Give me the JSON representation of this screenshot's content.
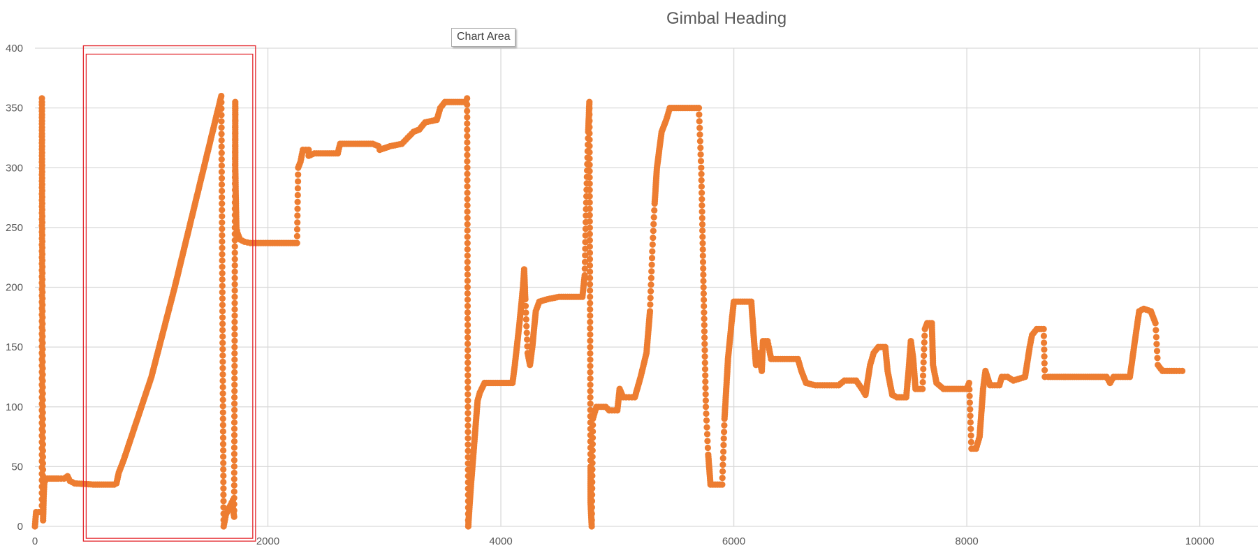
{
  "tooltip": {
    "label": "Chart Area"
  },
  "chart_data": {
    "type": "scatter",
    "title": "Gimbal Heading",
    "xlabel": "",
    "ylabel": "",
    "xlim": [
      0,
      10500
    ],
    "ylim": [
      0,
      400
    ],
    "x_ticks": [
      0,
      2000,
      4000,
      6000,
      8000,
      10000
    ],
    "y_ticks": [
      0,
      50,
      100,
      150,
      200,
      250,
      300,
      350,
      400
    ],
    "grid": true,
    "legend": "none",
    "marker_color": "#ED7D31",
    "grid_color": "#D9D9D9",
    "selection_color": "#E3262B",
    "selection_box": {
      "x_range": [
        440,
        1870
      ],
      "y_range": [
        -10,
        395
      ]
    },
    "series": [
      {
        "values": [
          [
            0,
            0
          ],
          [
            10,
            12
          ],
          [
            60,
            12
          ],
          [
            60,
            358
          ],
          [
            60,
            355
          ],
          [
            70,
            5
          ],
          [
            75,
            25
          ],
          [
            80,
            35
          ],
          [
            90,
            40
          ],
          [
            200,
            40
          ],
          [
            250,
            40
          ],
          [
            280,
            42
          ],
          [
            300,
            38
          ],
          [
            340,
            36
          ],
          [
            500,
            35
          ],
          [
            680,
            35
          ],
          [
            700,
            36
          ],
          [
            720,
            45
          ],
          [
            760,
            55
          ],
          [
            1000,
            125
          ],
          [
            1200,
            200
          ],
          [
            1400,
            280
          ],
          [
            1600,
            360
          ],
          [
            1620,
            0
          ],
          [
            1640,
            10
          ],
          [
            1680,
            18
          ],
          [
            1700,
            22
          ],
          [
            1700,
            15
          ],
          [
            1710,
            8
          ],
          [
            1720,
            355
          ],
          [
            1720,
            330
          ],
          [
            1720,
            300
          ],
          [
            1725,
            270
          ],
          [
            1730,
            250
          ],
          [
            1740,
            245
          ],
          [
            1760,
            240
          ],
          [
            1800,
            238
          ],
          [
            1850,
            237
          ],
          [
            1900,
            237
          ],
          [
            2000,
            237
          ],
          [
            2100,
            237
          ],
          [
            2250,
            237
          ],
          [
            2260,
            300
          ],
          [
            2280,
            305
          ],
          [
            2300,
            315
          ],
          [
            2350,
            315
          ],
          [
            2350,
            310
          ],
          [
            2400,
            312
          ],
          [
            2600,
            312
          ],
          [
            2620,
            320
          ],
          [
            2900,
            320
          ],
          [
            2950,
            318
          ],
          [
            2960,
            315
          ],
          [
            3050,
            318
          ],
          [
            3150,
            320
          ],
          [
            3200,
            325
          ],
          [
            3250,
            330
          ],
          [
            3300,
            332
          ],
          [
            3350,
            338
          ],
          [
            3450,
            340
          ],
          [
            3480,
            350
          ],
          [
            3520,
            355
          ],
          [
            3700,
            355
          ],
          [
            3710,
            358
          ],
          [
            3720,
            0
          ],
          [
            3740,
            30
          ],
          [
            3780,
            80
          ],
          [
            3800,
            105
          ],
          [
            3820,
            112
          ],
          [
            3860,
            120
          ],
          [
            4100,
            120
          ],
          [
            4120,
            135
          ],
          [
            4160,
            170
          ],
          [
            4190,
            200
          ],
          [
            4200,
            215
          ],
          [
            4210,
            190
          ],
          [
            4230,
            145
          ],
          [
            4250,
            135
          ],
          [
            4270,
            150
          ],
          [
            4300,
            180
          ],
          [
            4330,
            188
          ],
          [
            4400,
            190
          ],
          [
            4500,
            192
          ],
          [
            4700,
            192
          ],
          [
            4720,
            210
          ],
          [
            4730,
            260
          ],
          [
            4750,
            330
          ],
          [
            4760,
            355
          ],
          [
            4770,
            50
          ],
          [
            4770,
            20
          ],
          [
            4780,
            0
          ],
          [
            4790,
            90
          ],
          [
            4820,
            100
          ],
          [
            4900,
            100
          ],
          [
            4930,
            97
          ],
          [
            5000,
            97
          ],
          [
            5020,
            115
          ],
          [
            5050,
            108
          ],
          [
            5100,
            108
          ],
          [
            5150,
            108
          ],
          [
            5200,
            125
          ],
          [
            5250,
            145
          ],
          [
            5280,
            180
          ],
          [
            5300,
            230
          ],
          [
            5320,
            270
          ],
          [
            5340,
            300
          ],
          [
            5380,
            330
          ],
          [
            5420,
            340
          ],
          [
            5450,
            350
          ],
          [
            5600,
            350
          ],
          [
            5700,
            350
          ],
          [
            5720,
            300
          ],
          [
            5740,
            200
          ],
          [
            5760,
            100
          ],
          [
            5780,
            60
          ],
          [
            5800,
            35
          ],
          [
            5900,
            35
          ],
          [
            5920,
            90
          ],
          [
            5950,
            140
          ],
          [
            5980,
            170
          ],
          [
            6000,
            188
          ],
          [
            6150,
            188
          ],
          [
            6170,
            160
          ],
          [
            6190,
            135
          ],
          [
            6210,
            145
          ],
          [
            6240,
            130
          ],
          [
            6250,
            155
          ],
          [
            6290,
            155
          ],
          [
            6300,
            150
          ],
          [
            6320,
            140
          ],
          [
            6400,
            140
          ],
          [
            6550,
            140
          ],
          [
            6580,
            130
          ],
          [
            6620,
            120
          ],
          [
            6700,
            118
          ],
          [
            6800,
            118
          ],
          [
            6900,
            118
          ],
          [
            6950,
            122
          ],
          [
            7050,
            122
          ],
          [
            7100,
            115
          ],
          [
            7130,
            110
          ],
          [
            7170,
            135
          ],
          [
            7200,
            145
          ],
          [
            7240,
            150
          ],
          [
            7300,
            150
          ],
          [
            7320,
            130
          ],
          [
            7360,
            110
          ],
          [
            7400,
            108
          ],
          [
            7480,
            108
          ],
          [
            7500,
            130
          ],
          [
            7520,
            155
          ],
          [
            7540,
            140
          ],
          [
            7560,
            115
          ],
          [
            7620,
            115
          ],
          [
            7640,
            165
          ],
          [
            7660,
            170
          ],
          [
            7700,
            170
          ],
          [
            7710,
            135
          ],
          [
            7740,
            120
          ],
          [
            7800,
            115
          ],
          [
            8000,
            115
          ],
          [
            8020,
            120
          ],
          [
            8040,
            65
          ],
          [
            8080,
            65
          ],
          [
            8110,
            75
          ],
          [
            8140,
            115
          ],
          [
            8160,
            130
          ],
          [
            8200,
            118
          ],
          [
            8280,
            118
          ],
          [
            8300,
            125
          ],
          [
            8350,
            125
          ],
          [
            8400,
            122
          ],
          [
            8500,
            125
          ],
          [
            8540,
            150
          ],
          [
            8560,
            160
          ],
          [
            8600,
            165
          ],
          [
            8660,
            165
          ],
          [
            8670,
            125
          ],
          [
            8700,
            125
          ],
          [
            9000,
            125
          ],
          [
            9200,
            125
          ],
          [
            9230,
            120
          ],
          [
            9260,
            125
          ],
          [
            9400,
            125
          ],
          [
            9450,
            160
          ],
          [
            9480,
            180
          ],
          [
            9520,
            182
          ],
          [
            9580,
            180
          ],
          [
            9620,
            170
          ],
          [
            9640,
            135
          ],
          [
            9680,
            130
          ],
          [
            9800,
            130
          ],
          [
            9850,
            130
          ]
        ]
      }
    ]
  }
}
